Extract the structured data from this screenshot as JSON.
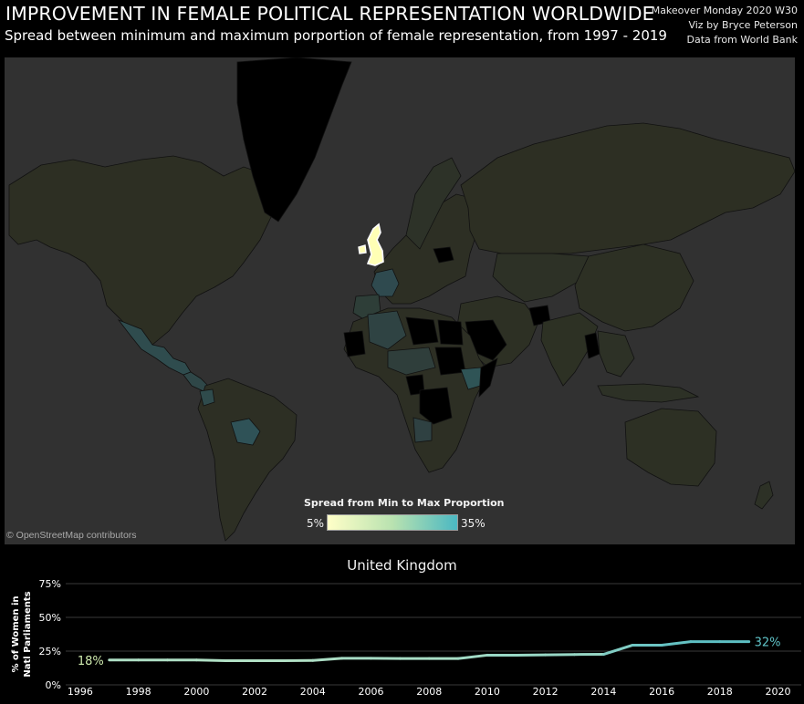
{
  "header": {
    "title": "IMPROVEMENT IN FEMALE POLITICAL REPRESENTATION WORLDWIDE",
    "subtitle": "Spread between minimum and maximum porportion of female representation, from 1997 - 2019",
    "credits": [
      "Makeover Monday 2020 W30",
      "Viz by Bryce Peterson",
      "Data from World Bank"
    ]
  },
  "map": {
    "attribution": "© OpenStreetMap contributors",
    "background_color": "#313131",
    "no_data_color": "#000000",
    "highlighted_country": "United Kingdom",
    "legend": {
      "title": "Spread from Min to Max Proportion",
      "min_label": "5%",
      "max_label": "35%",
      "colors": [
        "#ffffc8",
        "#4bb8c2"
      ]
    }
  },
  "chart_data": [
    {
      "type": "choropleth",
      "measure": "Spread from Min to Max Proportion",
      "range": [
        5,
        35
      ],
      "highlighted": "United Kingdom"
    },
    {
      "type": "line",
      "title": "United Kingdom",
      "ylabel": "% of Women in Natl Parliaments",
      "xlabel": "",
      "x": [
        1997,
        1998,
        1999,
        2000,
        2001,
        2002,
        2003,
        2004,
        2005,
        2006,
        2007,
        2008,
        2009,
        2010,
        2011,
        2012,
        2013,
        2014,
        2015,
        2016,
        2017,
        2018,
        2019
      ],
      "y": [
        18.4,
        18.4,
        18.4,
        18.4,
        17.9,
        17.9,
        17.9,
        18.1,
        19.7,
        19.7,
        19.5,
        19.5,
        19.5,
        22.0,
        22.0,
        22.2,
        22.5,
        22.6,
        29.4,
        29.4,
        32.0,
        32.0,
        32.0
      ],
      "xlim": [
        1995.5,
        2020.8
      ],
      "ylim": [
        0,
        75
      ],
      "xticks": [
        1996,
        1998,
        2000,
        2002,
        2004,
        2006,
        2008,
        2010,
        2012,
        2014,
        2016,
        2018,
        2020
      ],
      "yticks": [
        0,
        25,
        50,
        75
      ],
      "ytick_labels": [
        "0%",
        "25%",
        "50%",
        "75%"
      ],
      "start_label": "18%",
      "end_label": "32%",
      "grid": true,
      "color_scale": {
        "min": 5,
        "max": 35,
        "colors": [
          "#ffffc8",
          "#4bb8c2"
        ]
      }
    }
  ]
}
